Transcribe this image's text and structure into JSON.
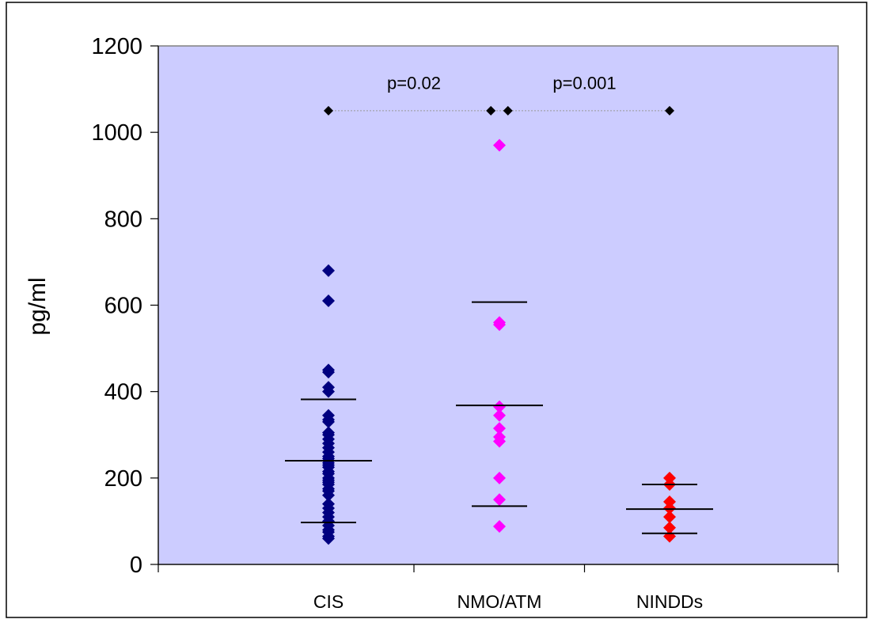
{
  "chart_data": {
    "type": "scatter",
    "title": "",
    "xlabel": "",
    "ylabel": "pg/ml",
    "ylim": [
      0,
      1200
    ],
    "yticks": [
      0,
      200,
      400,
      600,
      800,
      1000,
      1200
    ],
    "categories": [
      "CIS",
      "NMO/ATM",
      "NINDDs"
    ],
    "grid": false,
    "legend": "none",
    "plot_background": "#ccccff",
    "series": [
      {
        "category": "CIS",
        "color": "#000080",
        "values": [
          680,
          610,
          450,
          445,
          410,
          400,
          345,
          335,
          330,
          305,
          300,
          290,
          280,
          270,
          260,
          250,
          245,
          240,
          235,
          230,
          225,
          215,
          210,
          200,
          195,
          190,
          185,
          175,
          170,
          160,
          140,
          130,
          120,
          110,
          100,
          90,
          80,
          75,
          65,
          60
        ],
        "mean": 240,
        "sd_lower": 97,
        "sd_upper": 382
      },
      {
        "category": "NMO/ATM",
        "color": "#ff00ff",
        "values": [
          970,
          560,
          555,
          365,
          345,
          315,
          295,
          285,
          200,
          150,
          88
        ],
        "mean": 368,
        "sd_lower": 135,
        "sd_upper": 607
      },
      {
        "category": "NINDDs",
        "color": "#ff0000",
        "values": [
          200,
          185,
          145,
          130,
          110,
          85,
          65
        ],
        "mean": 128,
        "sd_lower": 72,
        "sd_upper": 185
      }
    ],
    "significance": {
      "y": 1050,
      "color": "#000000",
      "markers": [
        {
          "x": 0.0,
          "y": 1050
        },
        {
          "x": 0.95,
          "y": 1050
        },
        {
          "x": 1.05,
          "y": 1050
        },
        {
          "x": 2.0,
          "y": 1050
        }
      ],
      "labels": [
        {
          "text": "p=0.02",
          "x": 0.5,
          "y": 1115
        },
        {
          "text": "p=0.001",
          "x": 1.5,
          "y": 1115
        }
      ]
    }
  }
}
